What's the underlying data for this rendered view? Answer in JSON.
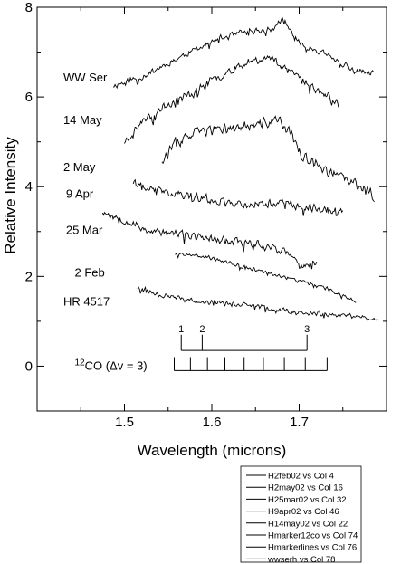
{
  "chart_data": {
    "type": "line",
    "xlabel": "Wavelength (microns)",
    "ylabel": "Relative Intensity",
    "xlim": [
      1.4,
      1.8
    ],
    "ylim": [
      -1,
      8
    ],
    "xticks": [
      1.5,
      1.6,
      1.7
    ],
    "xtick_labels": [
      "1.5",
      "1.6",
      "1.7"
    ],
    "yticks": [
      0,
      2,
      4,
      6,
      8
    ],
    "ytick_labels": [
      "0",
      "2",
      "4",
      "6",
      "8"
    ],
    "grid": false,
    "legend_position": "bottom-right",
    "legend": [
      "H2feb02 vs Col 4",
      "H2may02 vs Col 16",
      "H25mar02 vs Col 32",
      "H9apr02 vs Col 46",
      "H14may02 vs Col 22",
      "Hmarker12co vs Col 74",
      "Hmarkerlines vs Col 76",
      "wwserh vs Col 78"
    ],
    "series": [
      {
        "label": "WW Ser",
        "xrange": [
          1.487,
          1.785
        ],
        "points": [
          [
            1.487,
            6.25
          ],
          [
            1.52,
            6.45
          ],
          [
            1.55,
            6.75
          ],
          [
            1.58,
            7.05
          ],
          [
            1.61,
            7.3
          ],
          [
            1.64,
            7.45
          ],
          [
            1.67,
            7.5
          ],
          [
            1.68,
            7.75
          ],
          [
            1.7,
            7.2
          ],
          [
            1.73,
            6.95
          ],
          [
            1.76,
            6.6
          ],
          [
            1.785,
            6.5
          ]
        ],
        "noise": 0.09,
        "seed": 11
      },
      {
        "label": "14 May",
        "xrange": [
          1.5,
          1.745
        ],
        "points": [
          [
            1.5,
            5.0
          ],
          [
            1.52,
            5.45
          ],
          [
            1.55,
            5.85
          ],
          [
            1.58,
            6.1
          ],
          [
            1.6,
            6.35
          ],
          [
            1.62,
            6.6
          ],
          [
            1.65,
            6.85
          ],
          [
            1.67,
            6.85
          ],
          [
            1.69,
            6.6
          ],
          [
            1.71,
            6.3
          ],
          [
            1.745,
            5.85
          ]
        ],
        "noise": 0.12,
        "seed": 23
      },
      {
        "label": "2 May",
        "xrange": [
          1.543,
          1.786
        ],
        "points": [
          [
            1.543,
            4.6
          ],
          [
            1.56,
            5.0
          ],
          [
            1.59,
            5.25
          ],
          [
            1.62,
            5.3
          ],
          [
            1.65,
            5.35
          ],
          [
            1.675,
            5.5
          ],
          [
            1.69,
            5.2
          ],
          [
            1.705,
            4.65
          ],
          [
            1.73,
            4.35
          ],
          [
            1.76,
            4.1
          ],
          [
            1.786,
            3.8
          ]
        ],
        "noise": 0.15,
        "seed": 37
      },
      {
        "label": "9 Apr",
        "xrange": [
          1.51,
          1.75
        ],
        "points": [
          [
            1.51,
            4.1
          ],
          [
            1.53,
            3.95
          ],
          [
            1.56,
            3.85
          ],
          [
            1.6,
            3.7
          ],
          [
            1.64,
            3.6
          ],
          [
            1.68,
            3.65
          ],
          [
            1.71,
            3.55
          ],
          [
            1.75,
            3.45
          ]
        ],
        "noise": 0.12,
        "seed": 41
      },
      {
        "label": "25 Mar",
        "xrange": [
          1.475,
          1.72
        ],
        "points": [
          [
            1.475,
            3.45
          ],
          [
            1.5,
            3.25
          ],
          [
            1.53,
            3.0
          ],
          [
            1.56,
            2.95
          ],
          [
            1.6,
            2.85
          ],
          [
            1.64,
            2.75
          ],
          [
            1.67,
            2.65
          ],
          [
            1.69,
            2.5
          ],
          [
            1.7,
            2.2
          ],
          [
            1.72,
            2.3
          ]
        ],
        "noise": 0.11,
        "seed": 53
      },
      {
        "label": "2 Feb",
        "xrange": [
          1.558,
          1.765
        ],
        "points": [
          [
            1.558,
            2.5
          ],
          [
            1.58,
            2.5
          ],
          [
            1.61,
            2.35
          ],
          [
            1.64,
            2.2
          ],
          [
            1.67,
            2.05
          ],
          [
            1.7,
            1.9
          ],
          [
            1.73,
            1.75
          ],
          [
            1.765,
            1.45
          ]
        ],
        "noise": 0.05,
        "seed": 67
      },
      {
        "label": "HR 4517",
        "xrange": [
          1.515,
          1.79
        ],
        "points": [
          [
            1.515,
            1.75
          ],
          [
            1.55,
            1.55
          ],
          [
            1.58,
            1.45
          ],
          [
            1.62,
            1.4
          ],
          [
            1.66,
            1.3
          ],
          [
            1.7,
            1.2
          ],
          [
            1.74,
            1.15
          ],
          [
            1.79,
            1.05
          ]
        ],
        "noise": 0.07,
        "seed": 79
      }
    ],
    "markers": {
      "label": "12CO (Δv = 3)",
      "co_marker_x": [
        1.557,
        1.5755,
        1.595,
        1.615,
        1.637,
        1.659,
        1.683,
        1.707,
        1.732
      ],
      "co_marker_y": [
        -0.1,
        0.2
      ],
      "line_marker_x": [
        1.565,
        1.589,
        1.709
      ],
      "line_marker_y": [
        0.35,
        0.7
      ],
      "line_marker_labels": [
        "1",
        "2",
        "3"
      ]
    }
  }
}
